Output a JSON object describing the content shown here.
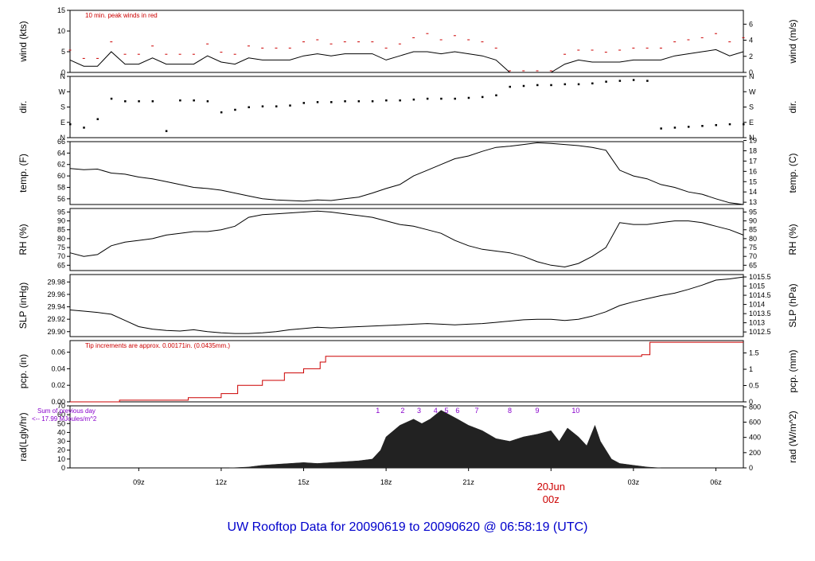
{
  "title": "UW Rooftop Data for 20090619  to  20090620 @ 06:58:19  (UTC)",
  "colors": {
    "frame": "#000000",
    "red": "#cc0000",
    "purple": "#8800cc",
    "blue": "#0000cc",
    "fill": "#222222"
  },
  "time_axis": {
    "start_hour": 6.5,
    "end_hour": 31.0,
    "ticks": [
      {
        "hour": 9,
        "label": "09z"
      },
      {
        "hour": 12,
        "label": "12z"
      },
      {
        "hour": 15,
        "label": "15z"
      },
      {
        "hour": 18,
        "label": "18z"
      },
      {
        "hour": 21,
        "label": "21z"
      },
      {
        "hour": 24,
        "label": "00z"
      },
      {
        "hour": 27,
        "label": "03z"
      },
      {
        "hour": 30,
        "label": "06z"
      }
    ],
    "day_label": "20Jun",
    "day_hour": 24
  },
  "chart_data": [
    {
      "id": "wind",
      "type": "line",
      "left_label": "wind (kts)",
      "right_label": "wind (m/s)",
      "annotation": "10 min. peak winds in red",
      "ylim": [
        0,
        15
      ],
      "left_ticks": [
        "0",
        "5",
        "10",
        "15"
      ],
      "left_tick_values": [
        0,
        5,
        10,
        15
      ],
      "right_ticks": [
        "0",
        "2",
        "4",
        "6"
      ],
      "right_tick_values": [
        0,
        3.89,
        7.78,
        11.66
      ],
      "x": [
        6.5,
        7,
        7.5,
        8,
        8.5,
        9,
        9.5,
        10,
        10.5,
        11,
        11.5,
        12,
        12.5,
        13,
        13.5,
        14,
        14.5,
        15,
        15.5,
        16,
        16.5,
        17,
        17.5,
        18,
        18.5,
        19,
        19.5,
        20,
        20.5,
        21,
        21.5,
        22,
        22.5,
        23,
        23.5,
        24,
        24.5,
        25,
        25.5,
        26,
        26.5,
        27,
        27.5,
        28,
        28.5,
        29,
        29.5,
        30,
        30.5,
        31
      ],
      "values": [
        3,
        1.5,
        1.5,
        5,
        2,
        2,
        3.5,
        2,
        2,
        2,
        4,
        2.5,
        2,
        3.5,
        3,
        3,
        3,
        4,
        4.5,
        4,
        4.5,
        4.5,
        4.5,
        3,
        4,
        5,
        5,
        4.5,
        5,
        4.5,
        4,
        3,
        0,
        0,
        0,
        0,
        2,
        3,
        2.5,
        2.5,
        2.5,
        3,
        3,
        3,
        4,
        4.5,
        5,
        5.5,
        4,
        5
      ],
      "peaks": [
        5,
        3,
        3,
        7,
        4,
        4,
        6,
        4,
        4,
        4,
        6.5,
        4.5,
        4,
        6,
        5.5,
        5.5,
        5.5,
        7,
        7.5,
        6.5,
        7,
        7,
        7,
        5.5,
        6.5,
        8,
        9,
        7.5,
        8.5,
        7.5,
        7,
        5.5,
        0,
        0,
        0,
        0,
        4,
        5,
        5,
        4.5,
        5,
        5.5,
        5.5,
        5.5,
        7,
        7.5,
        8,
        9,
        7,
        8
      ]
    },
    {
      "id": "dir",
      "type": "scatter",
      "left_label": "dir.",
      "right_label": "dir.",
      "ylim": [
        0,
        360
      ],
      "left_ticks": [
        "N",
        "E",
        "S",
        "W",
        "N"
      ],
      "left_tick_values": [
        0,
        90,
        180,
        270,
        360
      ],
      "right_ticks": [
        "N",
        "E",
        "S",
        "W",
        "N"
      ],
      "right_tick_values": [
        0,
        90,
        180,
        270,
        360
      ],
      "x": [
        6.5,
        7,
        7.5,
        8,
        8.5,
        9,
        9.5,
        10,
        10.5,
        11,
        11.5,
        12,
        12.5,
        13,
        13.5,
        14,
        14.5,
        15,
        15.5,
        16,
        16.5,
        17,
        17.5,
        18,
        18.5,
        19,
        19.5,
        20,
        20.5,
        21,
        21.5,
        22,
        22.5,
        23,
        23.5,
        24,
        24.5,
        25,
        25.5,
        26,
        26.5,
        27,
        27.5,
        28,
        28.5,
        29,
        29.5,
        30,
        30.5,
        31
      ],
      "values": [
        80,
        60,
        110,
        230,
        215,
        215,
        215,
        40,
        220,
        220,
        215,
        150,
        165,
        180,
        185,
        185,
        190,
        205,
        210,
        210,
        215,
        215,
        215,
        220,
        220,
        225,
        230,
        230,
        230,
        235,
        240,
        250,
        300,
        305,
        310,
        310,
        315,
        315,
        320,
        330,
        335,
        340,
        335,
        55,
        60,
        65,
        70,
        75,
        80,
        80
      ]
    },
    {
      "id": "temp",
      "type": "line",
      "left_label": "temp. (F)",
      "right_label": "temp. (C)",
      "ylim": [
        55,
        66
      ],
      "left_ticks": [
        "56",
        "58",
        "60",
        "62",
        "64",
        "66"
      ],
      "left_tick_values": [
        56,
        58,
        60,
        62,
        64,
        66
      ],
      "right_ticks": [
        "13",
        "14",
        "15",
        "16",
        "17",
        "18",
        "19"
      ],
      "right_tick_values": [
        55.4,
        57.2,
        59,
        60.8,
        62.6,
        64.4,
        66.2
      ],
      "x": [
        6.5,
        7,
        7.5,
        8,
        8.5,
        9,
        9.5,
        10,
        10.5,
        11,
        11.5,
        12,
        12.5,
        13,
        13.5,
        14,
        14.5,
        15,
        15.5,
        16,
        16.5,
        17,
        17.5,
        18,
        18.5,
        19,
        19.5,
        20,
        20.5,
        21,
        21.5,
        22,
        22.5,
        23,
        23.5,
        24,
        24.5,
        25,
        25.5,
        26,
        26.5,
        27,
        27.5,
        28,
        28.5,
        29,
        29.5,
        30,
        30.5,
        31
      ],
      "values": [
        61.3,
        61.1,
        61.2,
        60.5,
        60.3,
        59.8,
        59.5,
        59,
        58.5,
        58,
        57.8,
        57.5,
        57,
        56.5,
        56,
        55.8,
        55.7,
        55.6,
        55.8,
        55.7,
        56,
        56.3,
        57,
        57.8,
        58.5,
        60,
        61,
        62,
        63,
        63.5,
        64.3,
        65,
        65.2,
        65.5,
        65.8,
        65.7,
        65.5,
        65.3,
        65,
        64.5,
        61,
        60,
        59.5,
        58.5,
        58,
        57.2,
        56.8,
        56,
        55.3,
        55
      ]
    },
    {
      "id": "rh",
      "type": "line",
      "left_label": "RH (%)",
      "right_label": "RH (%)",
      "ylim": [
        62,
        97
      ],
      "left_ticks": [
        "65",
        "70",
        "75",
        "80",
        "85",
        "90",
        "95"
      ],
      "left_tick_values": [
        65,
        70,
        75,
        80,
        85,
        90,
        95
      ],
      "right_ticks": [
        "65",
        "70",
        "75",
        "80",
        "85",
        "90",
        "95"
      ],
      "right_tick_values": [
        65,
        70,
        75,
        80,
        85,
        90,
        95
      ],
      "x": [
        6.5,
        7,
        7.5,
        8,
        8.5,
        9,
        9.5,
        10,
        10.5,
        11,
        11.5,
        12,
        12.5,
        13,
        13.5,
        14,
        14.5,
        15,
        15.5,
        16,
        16.5,
        17,
        17.5,
        18,
        18.5,
        19,
        19.5,
        20,
        20.5,
        21,
        21.5,
        22,
        22.5,
        23,
        23.5,
        24,
        24.5,
        25,
        25.5,
        26,
        26.5,
        27,
        27.5,
        28,
        28.5,
        29,
        29.5,
        30,
        30.5,
        31
      ],
      "values": [
        72,
        70,
        71,
        76,
        78,
        79,
        80,
        82,
        83,
        84,
        84,
        85,
        87,
        92,
        93.5,
        94,
        94.5,
        95,
        95.5,
        95,
        94,
        93,
        92,
        90,
        88,
        87,
        85,
        83,
        79,
        76,
        74,
        73,
        72,
        70,
        67,
        65,
        64,
        66,
        70,
        75,
        89,
        88,
        88,
        89,
        90,
        90,
        89,
        87,
        85,
        82
      ]
    },
    {
      "id": "slp",
      "type": "line",
      "left_label": "SLP (inHg)",
      "right_label": "SLP (hPa)",
      "ylim": [
        29.892,
        29.992
      ],
      "left_ticks": [
        "29.90",
        "29.92",
        "29.94",
        "29.96",
        "29.98"
      ],
      "left_tick_values": [
        29.9,
        29.92,
        29.94,
        29.96,
        29.98
      ],
      "right_ticks": [
        "1012.5",
        "1013",
        "1013.5",
        "1014",
        "1014.5",
        "1015",
        "1015.5"
      ],
      "right_tick_values": [
        29.8995,
        29.9143,
        29.929,
        29.9438,
        29.9586,
        29.9733,
        29.9881
      ],
      "x": [
        6.5,
        7,
        7.5,
        8,
        8.5,
        9,
        9.5,
        10,
        10.5,
        11,
        11.5,
        12,
        12.5,
        13,
        13.5,
        14,
        14.5,
        15,
        15.5,
        16,
        16.5,
        17,
        17.5,
        18,
        18.5,
        19,
        19.5,
        20,
        20.5,
        21,
        21.5,
        22,
        22.5,
        23,
        23.5,
        24,
        24.5,
        25,
        25.5,
        26,
        26.5,
        27,
        27.5,
        28,
        28.5,
        29,
        29.5,
        30,
        30.5,
        31
      ],
      "values": [
        29.935,
        29.933,
        29.931,
        29.928,
        29.918,
        29.908,
        29.904,
        29.902,
        29.901,
        29.903,
        29.9,
        29.898,
        29.897,
        29.897,
        29.898,
        29.9,
        29.903,
        29.905,
        29.907,
        29.906,
        29.907,
        29.908,
        29.909,
        29.91,
        29.911,
        29.912,
        29.913,
        29.912,
        29.911,
        29.912,
        29.913,
        29.915,
        29.917,
        29.919,
        29.92,
        29.92,
        29.918,
        29.92,
        29.925,
        29.932,
        29.942,
        29.948,
        29.953,
        29.958,
        29.962,
        29.968,
        29.975,
        29.983,
        29.985,
        29.988
      ]
    },
    {
      "id": "pcp",
      "type": "line",
      "left_label": "pcp. (in)",
      "right_label": "pcp. (mm)",
      "annotation": "Tip increments are approx. 0.00171in. (0.0435mm.)",
      "ylim": [
        0,
        0.074
      ],
      "left_ticks": [
        "0.00",
        "0.02",
        "0.04",
        "0.06"
      ],
      "left_tick_values": [
        0,
        0.02,
        0.04,
        0.06
      ],
      "right_ticks": [
        "0",
        "0.5",
        "1",
        "1.5"
      ],
      "right_tick_values": [
        0,
        0.01969,
        0.03937,
        0.05906
      ],
      "x": [
        6.5,
        8.3,
        10.8,
        12.0,
        12.6,
        13.5,
        14.3,
        15.0,
        15.6,
        15.8,
        27.3,
        27.6,
        31
      ],
      "values": [
        0,
        0.002,
        0.005,
        0.01,
        0.02,
        0.026,
        0.035,
        0.04,
        0.048,
        0.055,
        0.057,
        0.072,
        0.072
      ]
    },
    {
      "id": "rad",
      "type": "area",
      "left_label": "rad(Lgly/hr)",
      "right_label": "rad (W/m^2)",
      "annotation": [
        "Sum of previous day",
        "<-- 17.99 MJoules/m^2"
      ],
      "ylim": [
        0,
        70
      ],
      "left_ticks": [
        "0",
        "10",
        "20",
        "30",
        "40",
        "50",
        "60",
        "70"
      ],
      "left_tick_values": [
        0,
        10,
        20,
        30,
        40,
        50,
        60,
        70
      ],
      "right_ticks": [
        "0",
        "200",
        "400",
        "600",
        "800"
      ],
      "right_tick_values": [
        0,
        17.2,
        34.4,
        51.6,
        68.8
      ],
      "x": [
        12.3,
        13,
        13.5,
        14,
        14.5,
        15,
        15.5,
        16,
        16.5,
        17,
        17.5,
        17.8,
        18,
        18.5,
        19,
        19.3,
        19.6,
        20,
        20.3,
        20.6,
        21,
        21.5,
        22,
        22.5,
        23,
        23.5,
        24,
        24.3,
        24.6,
        25,
        25.3,
        25.6,
        25.8,
        26.2,
        26.5,
        27,
        27.5,
        28
      ],
      "values": [
        0,
        1,
        3,
        4,
        5,
        6,
        5,
        6,
        7,
        8,
        10,
        20,
        35,
        48,
        55,
        50,
        55,
        65,
        60,
        55,
        48,
        42,
        33,
        30,
        35,
        38,
        42,
        30,
        45,
        35,
        25,
        48,
        30,
        10,
        5,
        3,
        1,
        0
      ]
    }
  ],
  "sun_markers": [
    {
      "label": "1",
      "hour": 17.7
    },
    {
      "label": "2",
      "hour": 18.6
    },
    {
      "label": "3",
      "hour": 19.2
    },
    {
      "label": "4",
      "hour": 19.8
    },
    {
      "label": "5",
      "hour": 20.2
    },
    {
      "label": "6",
      "hour": 20.6
    },
    {
      "label": "7",
      "hour": 21.3
    },
    {
      "label": "8",
      "hour": 22.5
    },
    {
      "label": "9",
      "hour": 23.5
    },
    {
      "label": "10",
      "hour": 24.9
    }
  ]
}
